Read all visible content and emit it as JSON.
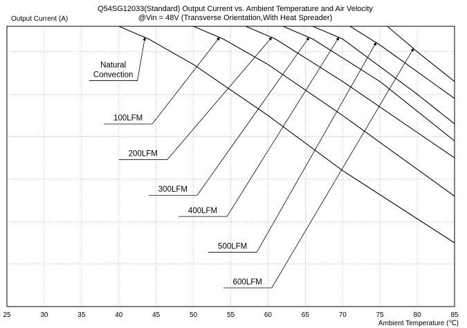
{
  "chart_data": {
    "type": "line",
    "title": "Q54SG12033(Standard)  Output Current vs. Ambient Temperature and Air Velocity",
    "subtitle": "@Vin = 48V (Transverse Orientation,With Heat Spreader)",
    "ylabel": "Output Current (A)",
    "xlabel": "Ambient Temperature (℃)",
    "xlim": [
      25,
      85
    ],
    "ylim": [
      0,
      33
    ],
    "x_ticks": [
      "25",
      "30",
      "35",
      "40",
      "45",
      "50",
      "55",
      "60",
      "65",
      "70",
      "75",
      "80",
      "85"
    ],
    "grid": true,
    "series": [
      {
        "name": "Natural Convection",
        "x": [
          25,
          40,
          44,
          50,
          60,
          70,
          85
        ],
        "y": [
          33,
          33,
          31.5,
          28.5,
          22.5,
          16,
          7.5
        ]
      },
      {
        "name": "100LFM",
        "x": [
          25,
          50,
          54,
          60,
          70,
          85
        ],
        "y": [
          33,
          33,
          31.5,
          28.5,
          22.5,
          13
        ]
      },
      {
        "name": "200LFM",
        "x": [
          25,
          57,
          61,
          70,
          85
        ],
        "y": [
          33,
          33,
          31.5,
          26.5,
          17.5
        ]
      },
      {
        "name": "300LFM",
        "x": [
          25,
          62,
          66,
          75,
          85
        ],
        "y": [
          33,
          33,
          31.5,
          26.5,
          19.5
        ]
      },
      {
        "name": "400LFM",
        "x": [
          25,
          66,
          70,
          80,
          85
        ],
        "y": [
          33,
          33,
          31.5,
          25,
          21.5
        ]
      },
      {
        "name": "500LFM",
        "x": [
          25,
          71,
          75,
          85
        ],
        "y": [
          33,
          33,
          30.8,
          24.5
        ]
      },
      {
        "name": "600LFM",
        "x": [
          25,
          76,
          80,
          85
        ],
        "y": [
          33,
          33,
          30,
          26.5
        ]
      }
    ],
    "annotations": [
      {
        "series": 0,
        "lines": [
          "Natural",
          "Convection"
        ],
        "label_x": 36,
        "label_y": 26.6,
        "arrow_to": [
          43.5,
          31.7
        ]
      },
      {
        "series": 1,
        "lines": [
          "100LFM"
        ],
        "label_x": 38,
        "label_y": 21.5,
        "arrow_to": [
          53.5,
          31.7
        ]
      },
      {
        "series": 2,
        "lines": [
          "200LFM"
        ],
        "label_x": 40,
        "label_y": 17.3,
        "arrow_to": [
          60.5,
          31.7
        ]
      },
      {
        "series": 3,
        "lines": [
          "300LFM"
        ],
        "label_x": 44,
        "label_y": 13.1,
        "arrow_to": [
          65.5,
          31.7
        ]
      },
      {
        "series": 4,
        "lines": [
          "400LFM"
        ],
        "label_x": 48,
        "label_y": 10.6,
        "arrow_to": [
          69.5,
          31.7
        ]
      },
      {
        "series": 5,
        "lines": [
          "500LFM"
        ],
        "label_x": 52,
        "label_y": 6.4,
        "arrow_to": [
          74.5,
          31.1
        ]
      },
      {
        "series": 6,
        "lines": [
          "600LFM"
        ],
        "label_x": 54,
        "label_y": 2.2,
        "arrow_to": [
          79.5,
          30.4
        ]
      }
    ]
  }
}
